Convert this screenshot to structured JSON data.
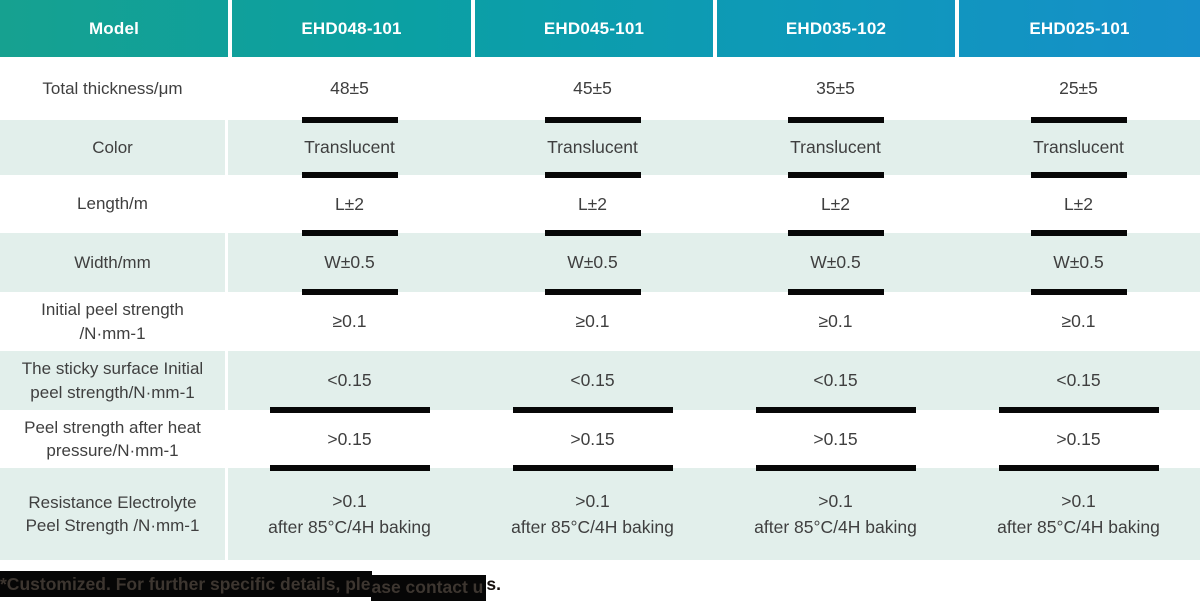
{
  "table": {
    "header": {
      "model_label": "Model",
      "columns": [
        "EHD048-101",
        "EHD045-101",
        "EHD035-102",
        "EHD025-101"
      ]
    },
    "rows": [
      {
        "label_lines": [
          "Total thickness/μm"
        ],
        "values": [
          [
            "48±5"
          ],
          [
            "45±5"
          ],
          [
            "35±5"
          ],
          [
            "25±5"
          ]
        ],
        "shaded": false,
        "bar": "narrow"
      },
      {
        "label_lines": [
          "Color"
        ],
        "values": [
          [
            "Translucent"
          ],
          [
            "Translucent"
          ],
          [
            "Translucent"
          ],
          [
            "Translucent"
          ]
        ],
        "shaded": true,
        "bar": "narrow"
      },
      {
        "label_lines": [
          "Length/m"
        ],
        "values": [
          [
            "L±2"
          ],
          [
            "L±2"
          ],
          [
            "L±2"
          ],
          [
            "L±2"
          ]
        ],
        "shaded": false,
        "bar": "narrow"
      },
      {
        "label_lines": [
          "Width/mm"
        ],
        "values": [
          [
            "W±0.5"
          ],
          [
            "W±0.5"
          ],
          [
            "W±0.5"
          ],
          [
            "W±0.5"
          ]
        ],
        "shaded": true,
        "bar": "narrow"
      },
      {
        "label_lines": [
          "Initial peel strength",
          "/N·mm-1"
        ],
        "values": [
          [
            "≥0.1"
          ],
          [
            "≥0.1"
          ],
          [
            "≥0.1"
          ],
          [
            "≥0.1"
          ]
        ],
        "shaded": false,
        "bar": "none"
      },
      {
        "label_lines": [
          "The sticky surface Initial",
          "peel strength/N·mm-1"
        ],
        "values": [
          [
            "<0.15"
          ],
          [
            "<0.15"
          ],
          [
            "<0.15"
          ],
          [
            "<0.15"
          ]
        ],
        "shaded": true,
        "bar": "wide"
      },
      {
        "label_lines": [
          "Peel strength after heat",
          "pressure/N·mm-1"
        ],
        "values": [
          [
            ">0.15"
          ],
          [
            ">0.15"
          ],
          [
            ">0.15"
          ],
          [
            ">0.15"
          ]
        ],
        "shaded": false,
        "bar": "wide"
      },
      {
        "label_lines": [
          "Resistance Electrolyte",
          "Peel Strength /N·mm-1"
        ],
        "values": [
          [
            ">0.1",
            "after 85°C/4H baking"
          ],
          [
            ">0.1",
            "after 85°C/4H baking"
          ],
          [
            ">0.1",
            "after 85°C/4H baking"
          ],
          [
            ">0.1",
            "after 85°C/4H baking"
          ]
        ],
        "shaded": true,
        "bar": "none"
      }
    ]
  },
  "footnote": {
    "highlight_part1": "*Customized. For further specific details, ple",
    "highlight_part2": "ase contact u",
    "tail": "s."
  },
  "colors": {
    "header_gradient_start": "#16a190",
    "header_gradient_end": "#168fca",
    "shaded_row": "#e2efeb",
    "body_text": "#3f3f3f",
    "header_text": "#ffffff",
    "divider": "#ffffff",
    "accent_bar": "#070707",
    "footnote_highlight": "#060606"
  }
}
